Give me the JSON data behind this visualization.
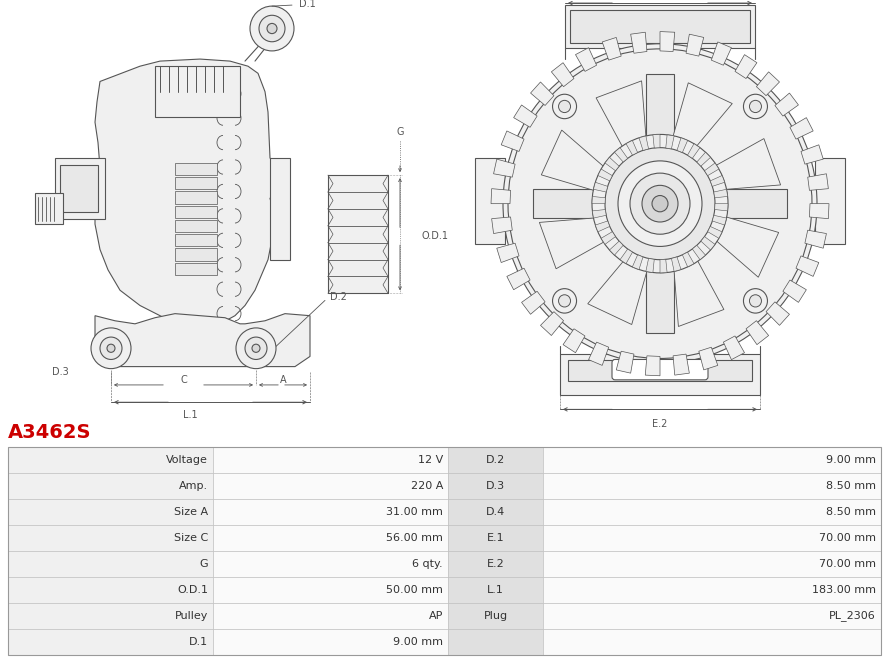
{
  "title": "A3462S",
  "title_color": "#cc0000",
  "background_color": "#ffffff",
  "table_data": [
    [
      "Voltage",
      "12 V",
      "D.2",
      "9.00 mm"
    ],
    [
      "Amp.",
      "220 A",
      "D.3",
      "8.50 mm"
    ],
    [
      "Size A",
      "31.00 mm",
      "D.4",
      "8.50 mm"
    ],
    [
      "Size C",
      "56.00 mm",
      "E.1",
      "70.00 mm"
    ],
    [
      "G",
      "6 qty.",
      "E.2",
      "70.00 mm"
    ],
    [
      "O.D.1",
      "50.00 mm",
      "L.1",
      "183.00 mm"
    ],
    [
      "Pulley",
      "AP",
      "Plug",
      "PL_2306"
    ],
    [
      "D.1",
      "9.00 mm",
      "",
      ""
    ]
  ],
  "line_color": "#555555",
  "dim_color": "#555555",
  "fill_light": "#f0f0f0",
  "fill_medium": "#e8e8e8",
  "fill_dark": "#d8d8d8"
}
